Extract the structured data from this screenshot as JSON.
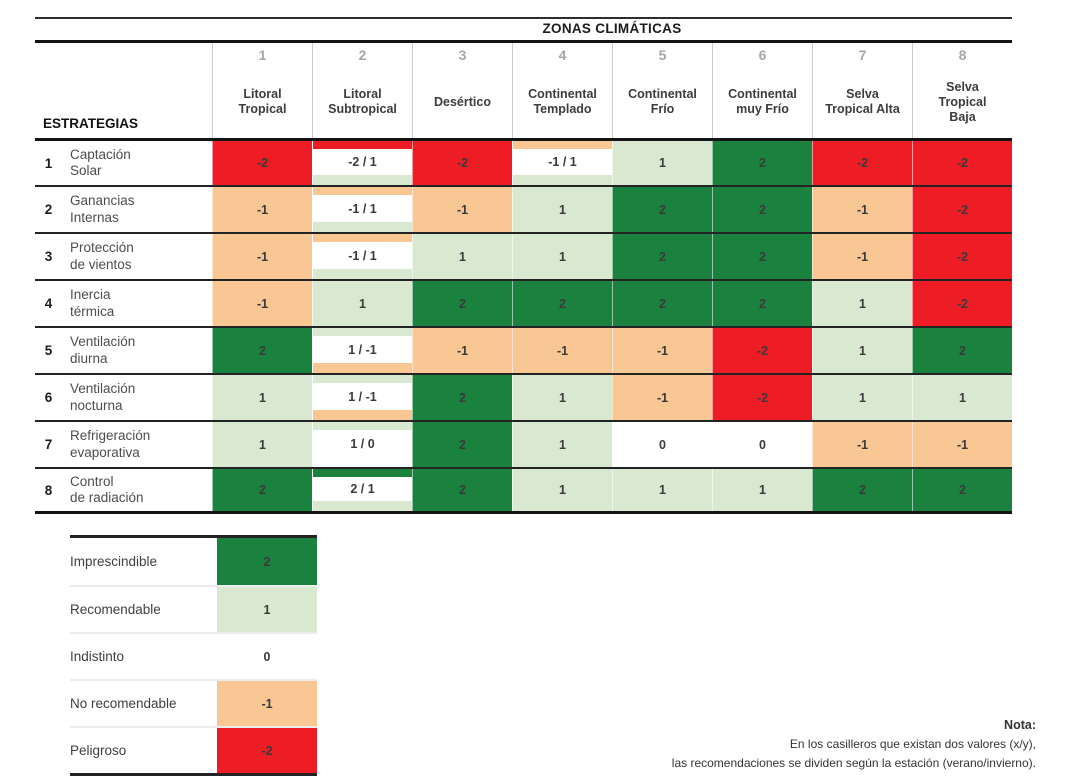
{
  "header": {
    "title": "ZONAS CLIMÁTICAS",
    "estrategias": "ESTRATEGIAS"
  },
  "colors": {
    "p2": "#1A813E",
    "p1": "#D9E8D1",
    "z0": "#FFFFFF",
    "n1": "#F8C794",
    "n2": "#EE1C25"
  },
  "zones": [
    {
      "num": "1",
      "name": "Litoral\nTropical"
    },
    {
      "num": "2",
      "name": "Litoral\nSubtropical"
    },
    {
      "num": "3",
      "name": "Desértico"
    },
    {
      "num": "4",
      "name": "Continental\nTemplado"
    },
    {
      "num": "5",
      "name": "Continental\nFrío"
    },
    {
      "num": "6",
      "name": "Continental\nmuy Frío"
    },
    {
      "num": "7",
      "name": "Selva\nTropical Alta"
    },
    {
      "num": "8",
      "name": "Selva\nTropical\nBaja"
    }
  ],
  "strategies": [
    {
      "num": "1",
      "name": "Captación\nSolar",
      "cells": [
        {
          "t": "-2",
          "bg": "n2"
        },
        {
          "t": "-2 / 1",
          "top": "n2",
          "bot": "p1"
        },
        {
          "t": "-2",
          "bg": "n2"
        },
        {
          "t": "-1 / 1",
          "top": "n1",
          "bot": "p1"
        },
        {
          "t": "1",
          "bg": "p1"
        },
        {
          "t": "2",
          "bg": "p2"
        },
        {
          "t": "-2",
          "bg": "n2"
        },
        {
          "t": "-2",
          "bg": "n2"
        }
      ]
    },
    {
      "num": "2",
      "name": "Ganancias\nInternas",
      "cells": [
        {
          "t": "-1",
          "bg": "n1"
        },
        {
          "t": "-1 / 1",
          "top": "n1",
          "bot": "p1"
        },
        {
          "t": "-1",
          "bg": "n1"
        },
        {
          "t": "1",
          "bg": "p1"
        },
        {
          "t": "2",
          "bg": "p2"
        },
        {
          "t": "2",
          "bg": "p2"
        },
        {
          "t": "-1",
          "bg": "n1"
        },
        {
          "t": "-2",
          "bg": "n2"
        }
      ]
    },
    {
      "num": "3",
      "name": "Protección\nde vientos",
      "cells": [
        {
          "t": "-1",
          "bg": "n1"
        },
        {
          "t": "-1 / 1",
          "top": "n1",
          "bot": "p1"
        },
        {
          "t": "1",
          "bg": "p1"
        },
        {
          "t": "1",
          "bg": "p1"
        },
        {
          "t": "2",
          "bg": "p2"
        },
        {
          "t": "2",
          "bg": "p2"
        },
        {
          "t": "-1",
          "bg": "n1"
        },
        {
          "t": "-2",
          "bg": "n2"
        }
      ]
    },
    {
      "num": "4",
      "name": "Inercia\ntérmica",
      "cells": [
        {
          "t": "-1",
          "bg": "n1"
        },
        {
          "t": "1",
          "bg": "p1"
        },
        {
          "t": "2",
          "bg": "p2"
        },
        {
          "t": "2",
          "bg": "p2"
        },
        {
          "t": "2",
          "bg": "p2"
        },
        {
          "t": "2",
          "bg": "p2"
        },
        {
          "t": "1",
          "bg": "p1"
        },
        {
          "t": "-2",
          "bg": "n2"
        }
      ]
    },
    {
      "num": "5",
      "name": "Ventilación\ndiurna",
      "cells": [
        {
          "t": "2",
          "bg": "p2"
        },
        {
          "t": "1 / -1",
          "top": "p1",
          "bot": "n1"
        },
        {
          "t": "-1",
          "bg": "n1"
        },
        {
          "t": "-1",
          "bg": "n1"
        },
        {
          "t": "-1",
          "bg": "n1"
        },
        {
          "t": "-2",
          "bg": "n2"
        },
        {
          "t": "1",
          "bg": "p1"
        },
        {
          "t": "2",
          "bg": "p2"
        }
      ]
    },
    {
      "num": "6",
      "name": "Ventilación\nnocturna",
      "cells": [
        {
          "t": "1",
          "bg": "p1"
        },
        {
          "t": "1 / -1",
          "top": "p1",
          "bot": "n1"
        },
        {
          "t": "2",
          "bg": "p2"
        },
        {
          "t": "1",
          "bg": "p1"
        },
        {
          "t": "-1",
          "bg": "n1"
        },
        {
          "t": "-2",
          "bg": "n2"
        },
        {
          "t": "1",
          "bg": "p1"
        },
        {
          "t": "1",
          "bg": "p1"
        }
      ]
    },
    {
      "num": "7",
      "name": "Refrigeración\nevaporativa",
      "cells": [
        {
          "t": "1",
          "bg": "p1"
        },
        {
          "t": "1 / 0",
          "top": "p1",
          "bot": "z0"
        },
        {
          "t": "2",
          "bg": "p2"
        },
        {
          "t": "1",
          "bg": "p1"
        },
        {
          "t": "0",
          "bg": "z0"
        },
        {
          "t": "0",
          "bg": "z0"
        },
        {
          "t": "-1",
          "bg": "n1"
        },
        {
          "t": "-1",
          "bg": "n1"
        }
      ]
    },
    {
      "num": "8",
      "name": "Control\nde radiación",
      "cells": [
        {
          "t": "2",
          "bg": "p2"
        },
        {
          "t": "2 / 1",
          "top": "p2",
          "bot": "p1"
        },
        {
          "t": "2",
          "bg": "p2"
        },
        {
          "t": "1",
          "bg": "p1"
        },
        {
          "t": "1",
          "bg": "p1"
        },
        {
          "t": "1",
          "bg": "p1"
        },
        {
          "t": "2",
          "bg": "p2"
        },
        {
          "t": "2",
          "bg": "p2"
        }
      ]
    }
  ],
  "legend": [
    {
      "label": "Imprescindible",
      "value": "2",
      "color": "p2"
    },
    {
      "label": "Recomendable",
      "value": "1",
      "color": "p1"
    },
    {
      "label": "Indistinto",
      "value": "0",
      "color": "z0"
    },
    {
      "label": "No recomendable",
      "value": "-1",
      "color": "n1"
    },
    {
      "label": "Peligroso",
      "value": "-2",
      "color": "n2"
    }
  ],
  "note": {
    "title": "Nota:",
    "line1": "En los casilleros que existan dos valores (x/y),",
    "line2": "las recomendaciones se dividen según la estación (verano/invierno)."
  },
  "chart_data": {
    "type": "heatmap",
    "title": "ZONAS CLIMÁTICAS",
    "xlabel": "Zonas climáticas",
    "ylabel": "Estrategias",
    "columns": [
      "Litoral Tropical",
      "Litoral Subtropical",
      "Desértico",
      "Continental Templado",
      "Continental Frío",
      "Continental muy Frío",
      "Selva Tropical Alta",
      "Selva Tropical Baja"
    ],
    "rows": [
      "Captación Solar",
      "Ganancias Internas",
      "Protección de vientos",
      "Inercia térmica",
      "Ventilación diurna",
      "Ventilación nocturna",
      "Refrigeración evaporativa",
      "Control de radiación"
    ],
    "values": [
      [
        -2,
        "-2 / 1",
        -2,
        "-1 / 1",
        1,
        2,
        -2,
        -2
      ],
      [
        -1,
        "-1 / 1",
        -1,
        1,
        2,
        2,
        -1,
        -2
      ],
      [
        -1,
        "-1 / 1",
        1,
        1,
        2,
        2,
        -1,
        -2
      ],
      [
        -1,
        1,
        2,
        2,
        2,
        2,
        1,
        -2
      ],
      [
        2,
        "1 / -1",
        -1,
        -1,
        -1,
        -2,
        1,
        2
      ],
      [
        1,
        "1 / -1",
        2,
        1,
        -1,
        -2,
        1,
        1
      ],
      [
        1,
        "1 / 0",
        2,
        1,
        0,
        0,
        -1,
        -1
      ],
      [
        2,
        "2 / 1",
        2,
        1,
        1,
        1,
        2,
        2
      ]
    ],
    "scale": {
      "2": "Imprescindible",
      "1": "Recomendable",
      "0": "Indistinto",
      "-1": "No recomendable",
      "-2": "Peligroso"
    },
    "legend_position": "bottom-left",
    "grid": true
  }
}
